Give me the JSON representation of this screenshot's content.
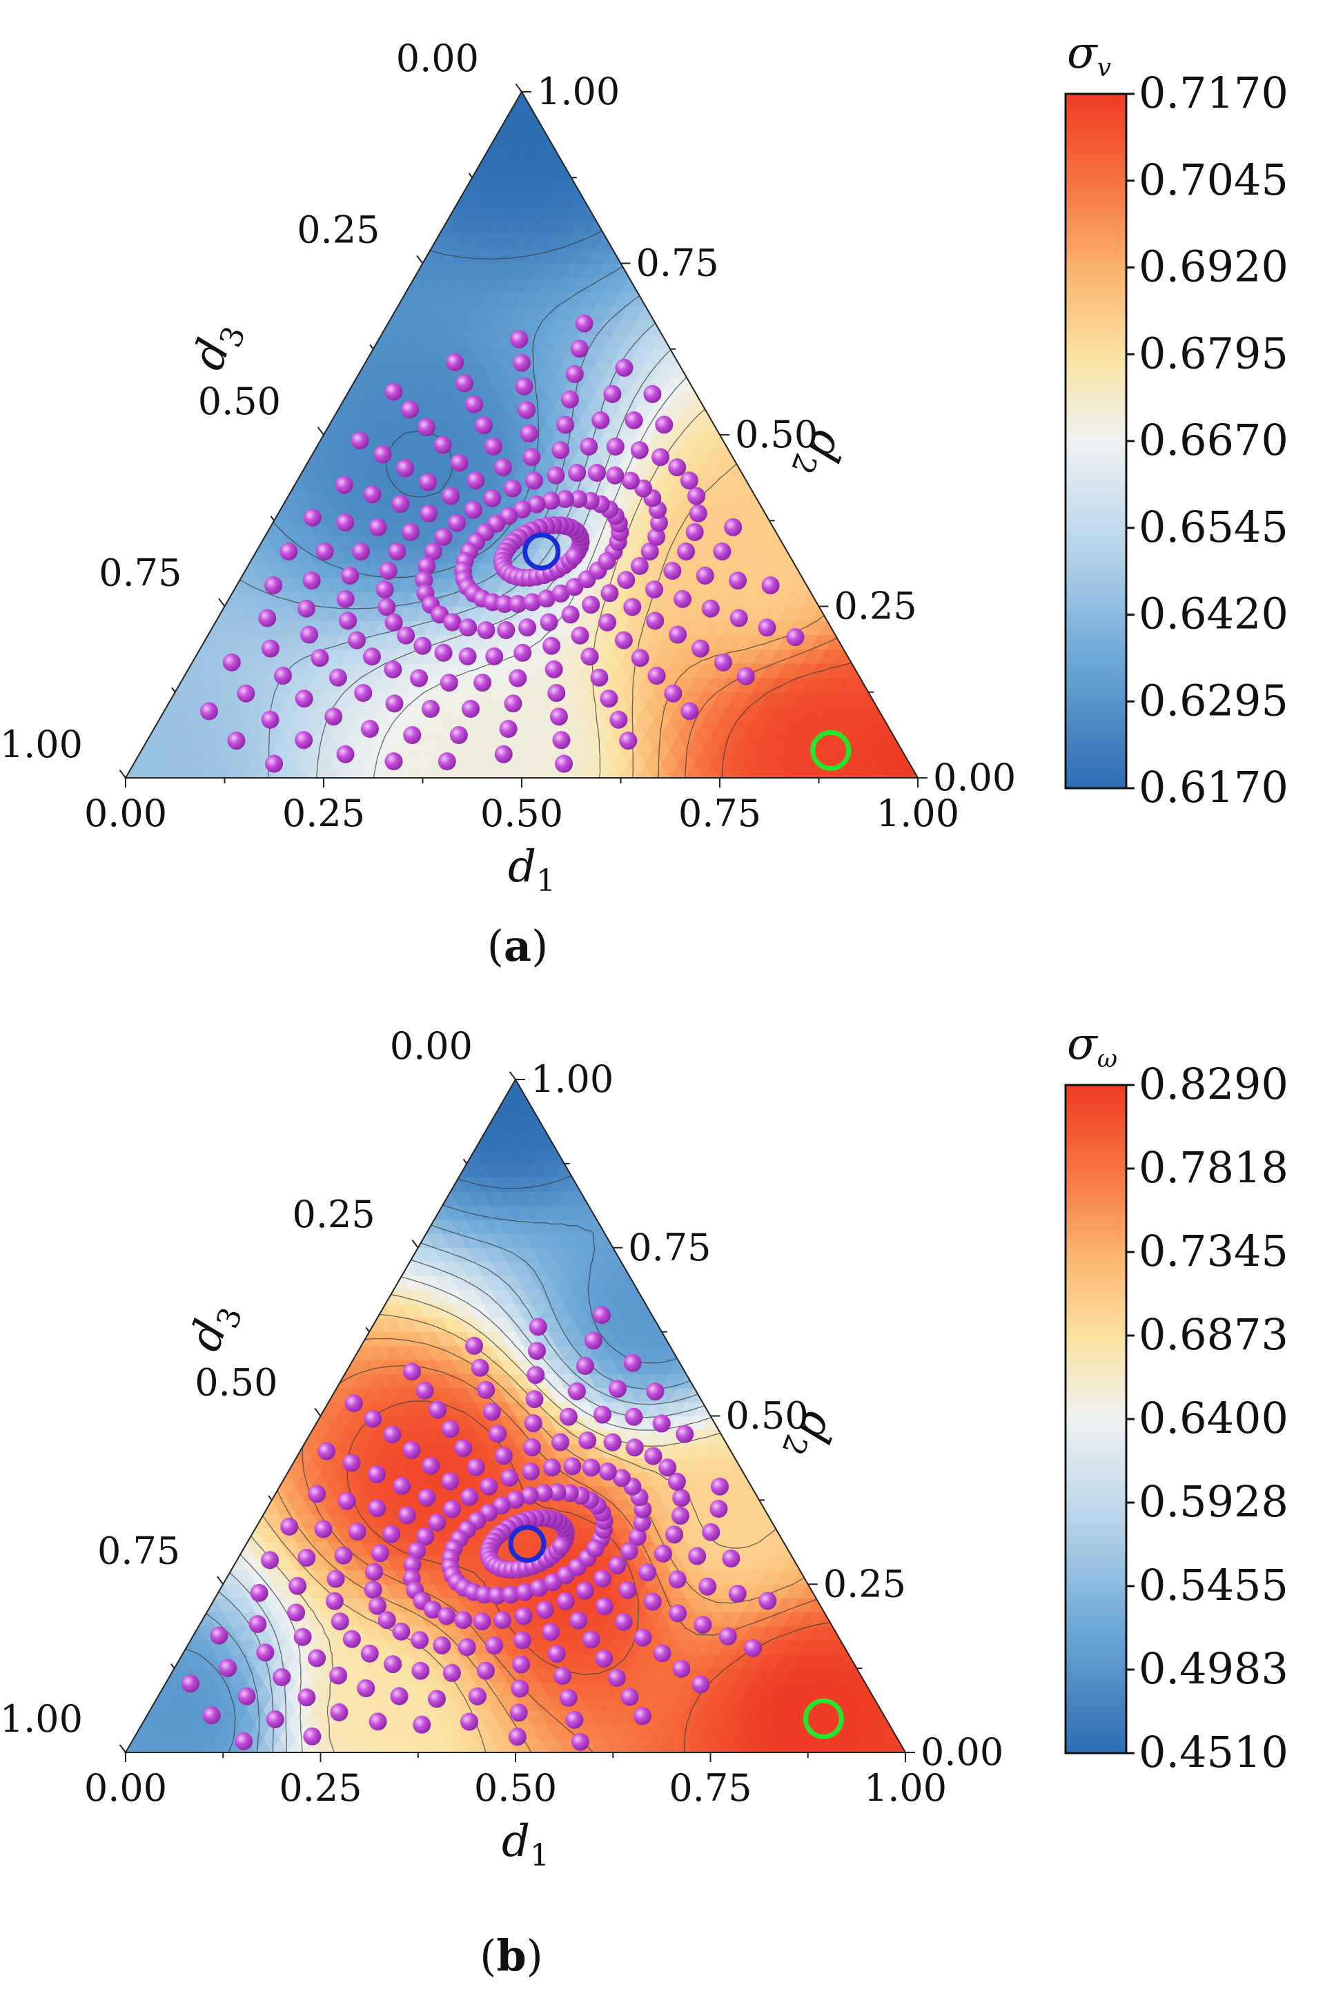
{
  "colors": {
    "low": "#2d6db3",
    "mid": "#e8eef3",
    "high": "#f23a26",
    "point": "#c44ddb",
    "best_blue_marker": "#1b2bd6",
    "best_green_marker": "#26e52c"
  },
  "chart_data": [
    {
      "type": "ternary_contour",
      "panel_label": "(a)",
      "panel_letter": "a",
      "axes": {
        "d1": {
          "label_main": "d",
          "label_sub": "1",
          "ticks": [
            "0.00",
            "0.25",
            "0.50",
            "0.75",
            "1.00"
          ]
        },
        "d2": {
          "label_main": "d",
          "label_sub": "2",
          "ticks": [
            "0.00",
            "0.25",
            "0.50",
            "0.75",
            "1.00"
          ]
        },
        "d3": {
          "label_main": "d",
          "label_sub": "3",
          "ticks": [
            "0.00",
            "0.25",
            "0.50",
            "0.75",
            "1.00"
          ]
        }
      },
      "colorbar": {
        "title_main": "σ",
        "title_sub": "v",
        "ticks": [
          "0.7170",
          "0.7045",
          "0.6920",
          "0.6795",
          "0.6670",
          "0.6545",
          "0.6420",
          "0.6295",
          "0.6170"
        ],
        "range": [
          0.617,
          0.717
        ]
      },
      "field_peaks": [
        {
          "d1": 0.0,
          "d2": 1.0,
          "value": 0.617
        },
        {
          "d1": 1.0,
          "d2": 0.0,
          "value": 0.717
        },
        {
          "d1": 0.85,
          "d2": 0.05,
          "value": 0.715
        },
        {
          "d1": 0.45,
          "d2": 0.02,
          "value": 0.67
        },
        {
          "d1": 0.0,
          "d2": 0.0,
          "value": 0.645
        },
        {
          "d1": 0.15,
          "d2": 0.45,
          "value": 0.625
        },
        {
          "d1": 0.65,
          "d2": 0.3,
          "value": 0.685
        }
      ],
      "blue_marker": {
        "d1": 0.36,
        "d2": 0.33
      },
      "green_marker": {
        "d1": 0.87,
        "d2": 0.04
      }
    },
    {
      "type": "ternary_contour",
      "panel_label": "(b)",
      "panel_letter": "b",
      "axes": {
        "d1": {
          "label_main": "d",
          "label_sub": "1",
          "ticks": [
            "0.00",
            "0.25",
            "0.50",
            "0.75",
            "1.00"
          ]
        },
        "d2": {
          "label_main": "d",
          "label_sub": "2",
          "ticks": [
            "0.00",
            "0.25",
            "0.50",
            "0.75",
            "1.00"
          ]
        },
        "d3": {
          "label_main": "d",
          "label_sub": "3",
          "ticks": [
            "0.00",
            "0.25",
            "0.50",
            "0.75",
            "1.00"
          ]
        }
      },
      "colorbar": {
        "title_main": "σ",
        "title_sub": "ω",
        "ticks": [
          "0.8290",
          "0.7818",
          "0.7345",
          "0.6873",
          "0.6400",
          "0.5928",
          "0.5455",
          "0.4983",
          "0.4510"
        ],
        "range": [
          0.451,
          0.829
        ]
      },
      "field_peaks": [
        {
          "d1": 0.0,
          "d2": 1.0,
          "value": 0.451
        },
        {
          "d1": 0.35,
          "d2": 0.65,
          "value": 0.5
        },
        {
          "d1": 0.2,
          "d2": 0.4,
          "value": 0.82
        },
        {
          "d1": 0.45,
          "d2": 0.25,
          "value": 0.82
        },
        {
          "d1": 0.85,
          "d2": 0.06,
          "value": 0.829
        },
        {
          "d1": 0.05,
          "d2": 0.05,
          "value": 0.5
        },
        {
          "d1": 0.3,
          "d2": 0.05,
          "value": 0.68
        },
        {
          "d1": 0.6,
          "d2": 0.35,
          "value": 0.7
        }
      ],
      "blue_marker": {
        "d1": 0.36,
        "d2": 0.31
      },
      "green_marker": {
        "d1": 0.87,
        "d2": 0.05
      }
    }
  ]
}
